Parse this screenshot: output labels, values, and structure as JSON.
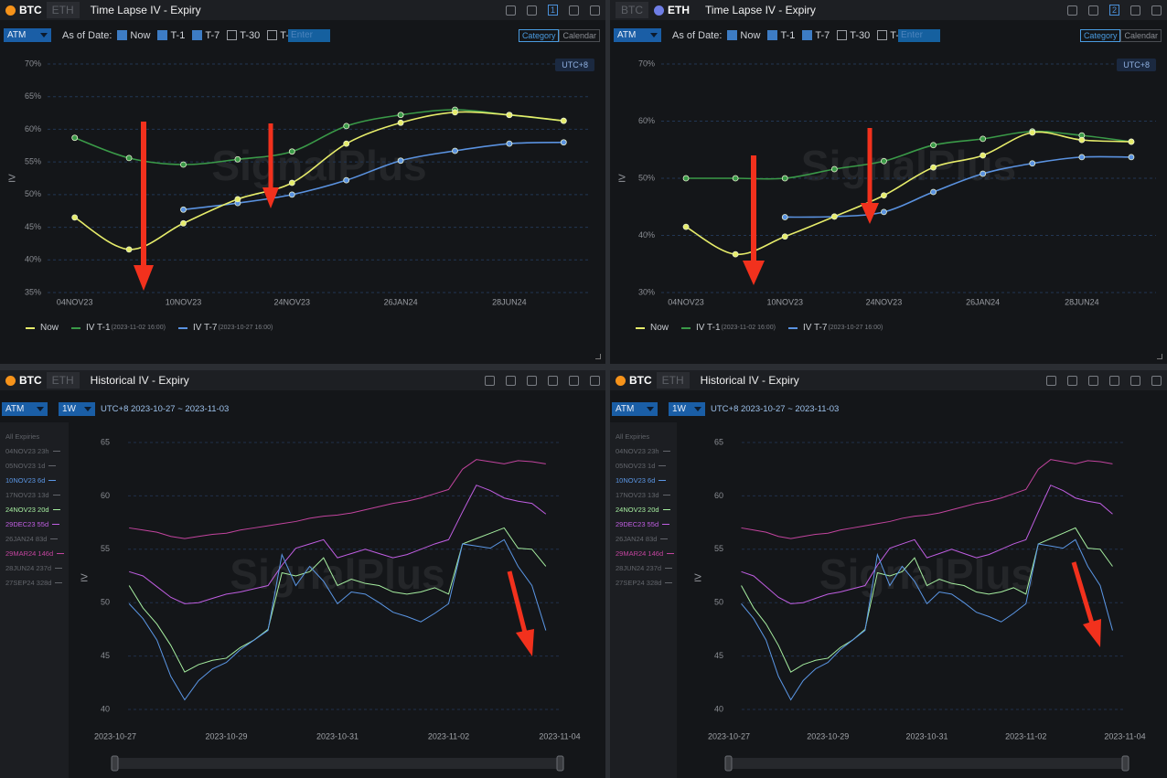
{
  "panels": [
    {
      "tabs": [
        "BTC",
        "ETH"
      ],
      "active_tab": 0,
      "title": "Time Lapse IV - Expiry",
      "page": "1",
      "toolbar": {
        "select": "ATM",
        "as_of_label": "As of Date:",
        "options": [
          {
            "label": "Now",
            "checked": true
          },
          {
            "label": "T-1",
            "checked": true
          },
          {
            "label": "T-7",
            "checked": true
          },
          {
            "label": "T-30",
            "checked": false
          },
          {
            "label": "T-",
            "checked": false
          }
        ],
        "input_placeholder": "Enter",
        "modes": [
          "Category",
          "Calendar"
        ],
        "active_mode": 0
      },
      "timezone": "UTC+8",
      "watermark": "SignalPlus"
    },
    {
      "tabs": [
        "BTC",
        "ETH"
      ],
      "active_tab": 1,
      "title": "Time Lapse IV - Expiry",
      "page": "2",
      "toolbar": {
        "select": "ATM",
        "as_of_label": "As of Date:",
        "options": [
          {
            "label": "Now",
            "checked": true
          },
          {
            "label": "T-1",
            "checked": true
          },
          {
            "label": "T-7",
            "checked": true
          },
          {
            "label": "T-30",
            "checked": false
          },
          {
            "label": "T-",
            "checked": false
          }
        ],
        "input_placeholder": "Enter",
        "modes": [
          "Category",
          "Calendar"
        ],
        "active_mode": 0
      },
      "timezone": "UTC+8",
      "watermark": "SignalPlus"
    },
    {
      "tabs": [
        "BTC",
        "ETH"
      ],
      "active_tab": 0,
      "title": "Historical IV - Expiry",
      "toolbar": {
        "select": "ATM",
        "period": "1W",
        "range": "UTC+8 2023-10-27 ~ 2023-11-03"
      },
      "sidebar_title": "All Expiries",
      "watermark": "SignalPlus"
    },
    {
      "tabs": [
        "BTC",
        "ETH"
      ],
      "active_tab": 0,
      "title": "Historical IV - Expiry",
      "toolbar": {
        "select": "ATM",
        "period": "1W",
        "range": "UTC+8 2023-10-27 ~ 2023-11-03"
      },
      "sidebar_title": "All Expiries",
      "watermark": "SignalPlus"
    }
  ],
  "chart_data": [
    {
      "type": "line",
      "y_label": "IV",
      "categories": [
        "04NOV23",
        null,
        "10NOV23",
        null,
        "24NOV23",
        null,
        "26JAN24",
        null,
        "28JUN24",
        null
      ],
      "series": [
        {
          "name": "Now",
          "color": "#e6ec6a",
          "values": [
            46.5,
            41.6,
            45.6,
            49.3,
            51.8,
            57.8,
            61.0,
            62.6,
            62.2,
            61.3
          ]
        },
        {
          "name": "IV T-1",
          "date_label": "(2023-11-02 16:00)",
          "color": "#3a9a48",
          "values": [
            58.7,
            55.6,
            54.6,
            55.4,
            56.6,
            60.5,
            62.2,
            63.0,
            62.2,
            61.3
          ]
        },
        {
          "name": "IV T-7",
          "date_label": "(2023-10-27 16:00)",
          "color": "#5a92e0",
          "values": [
            null,
            null,
            47.7,
            48.7,
            50.0,
            52.2,
            55.2,
            56.7,
            57.8,
            58.0
          ]
        }
      ],
      "ylim": [
        35,
        70
      ],
      "yticks": [
        {
          "value": 35,
          "label": "35%"
        },
        {
          "value": 40,
          "label": "40%"
        },
        {
          "value": 45,
          "label": "45%"
        },
        {
          "value": 50,
          "label": "50%"
        },
        {
          "value": 55,
          "label": "55%"
        },
        {
          "value": 60,
          "label": "60%"
        },
        {
          "value": 65,
          "label": "65%"
        },
        {
          "value": 70,
          "label": "70%"
        }
      ],
      "grid": true
    },
    {
      "type": "line",
      "y_label": "IV",
      "categories": [
        "04NOV23",
        null,
        "10NOV23",
        null,
        "24NOV23",
        null,
        "26JAN24",
        null,
        "28JUN24",
        null
      ],
      "series": [
        {
          "name": "Now",
          "color": "#e6ec6a",
          "values": [
            41.5,
            36.7,
            39.8,
            43.3,
            47.0,
            51.9,
            54.0,
            58.0,
            56.7,
            56.4
          ]
        },
        {
          "name": "IV T-1",
          "date_label": "(2023-11-02 16:00)",
          "color": "#3a9a48",
          "values": [
            50.0,
            50.0,
            50.0,
            51.6,
            53.0,
            55.8,
            56.9,
            58.2,
            57.5,
            56.4
          ]
        },
        {
          "name": "IV T-7",
          "date_label": "(2023-10-27 16:00)",
          "color": "#5a92e0",
          "values": [
            null,
            null,
            43.2,
            43.3,
            44.1,
            47.6,
            50.8,
            52.6,
            53.7,
            53.7
          ]
        }
      ],
      "ylim": [
        30,
        70
      ],
      "yticks": [
        {
          "value": 30,
          "label": "30%"
        },
        {
          "value": 40,
          "label": "40%"
        },
        {
          "value": 50,
          "label": "50%"
        },
        {
          "value": 60,
          "label": "60%"
        },
        {
          "value": 70,
          "label": "70%"
        }
      ],
      "grid": true
    },
    {
      "type": "line",
      "y_label": "IV",
      "x": [
        "2023-10-27 06:00",
        "2023-10-27 12:00",
        "2023-10-27 18:00",
        "2023-10-28 00:00",
        "2023-10-28 06:00",
        "2023-10-28 12:00",
        "2023-10-28 18:00",
        "2023-10-29 00:00",
        "2023-10-29 06:00",
        "2023-10-29 12:00",
        "2023-10-29 18:00",
        "2023-10-30 00:00",
        "2023-10-30 06:00",
        "2023-10-30 12:00",
        "2023-10-30 18:00",
        "2023-10-31 00:00",
        "2023-10-31 06:00",
        "2023-10-31 12:00",
        "2023-10-31 18:00",
        "2023-11-01 00:00",
        "2023-11-01 06:00",
        "2023-11-01 12:00",
        "2023-11-01 18:00",
        "2023-11-02 00:00",
        "2023-11-02 06:00",
        "2023-11-02 12:00",
        "2023-11-02 18:00",
        "2023-11-03 00:00",
        "2023-11-03 06:00",
        "2023-11-03 12:00",
        "2023-11-03 18:00"
      ],
      "xlim": [
        "2023-10-27",
        "2023-11-04"
      ],
      "xticks": [
        "2023-10-27",
        "2023-10-29",
        "2023-10-31",
        "2023-11-02",
        "2023-11-04"
      ],
      "ylim": [
        40,
        65
      ],
      "yticks": [
        40,
        45,
        50,
        55,
        60,
        65
      ],
      "grid": true,
      "series": [
        {
          "name": "04NOV23 23h",
          "visible": false
        },
        {
          "name": "05NOV23 1d",
          "visible": false
        },
        {
          "name": "10NOV23 6d",
          "visible": true,
          "color": "#5b97e6",
          "values": [
            49.9,
            48.5,
            46.5,
            43.1,
            40.9,
            42.7,
            43.8,
            44.4,
            45.6,
            46.5,
            47.4,
            54.5,
            51.6,
            53.4,
            52.0,
            49.9,
            51.0,
            50.8,
            50.0,
            49.1,
            48.7,
            48.2,
            49.0,
            49.9,
            55.5,
            55.3,
            55.1,
            55.9,
            53.4,
            51.6,
            47.4
          ]
        },
        {
          "name": "17NOV23 13d",
          "visible": false
        },
        {
          "name": "24NOV23 20d",
          "visible": true,
          "color": "#a6eea0",
          "values": [
            51.6,
            49.5,
            48.0,
            46.0,
            43.5,
            44.2,
            44.6,
            44.8,
            45.8,
            46.5,
            47.5,
            52.8,
            52.5,
            52.9,
            54.2,
            51.6,
            52.2,
            51.8,
            51.6,
            51.0,
            50.8,
            51.0,
            51.4,
            50.8,
            55.5,
            56.0,
            56.5,
            57.0,
            55.1,
            55.0,
            53.4
          ]
        },
        {
          "name": "29DEC23 55d",
          "visible": true,
          "color": "#c05ee2",
          "values": [
            52.9,
            52.5,
            51.5,
            50.5,
            49.9,
            50.0,
            50.4,
            50.8,
            51.0,
            51.3,
            51.6,
            53.5,
            55.1,
            55.5,
            55.9,
            54.2,
            54.6,
            55.0,
            54.6,
            54.2,
            54.5,
            55.0,
            55.5,
            55.9,
            58.5,
            61.0,
            60.5,
            59.8,
            59.5,
            59.3,
            58.3
          ]
        },
        {
          "name": "26JAN24 83d",
          "visible": false
        },
        {
          "name": "29MAR24 146d",
          "visible": true,
          "color": "#c2449e",
          "values": [
            57.0,
            56.8,
            56.6,
            56.2,
            56.0,
            56.2,
            56.4,
            56.5,
            56.8,
            57.0,
            57.2,
            57.4,
            57.6,
            57.9,
            58.1,
            58.2,
            58.4,
            58.7,
            59.0,
            59.3,
            59.5,
            59.8,
            60.2,
            60.6,
            62.5,
            63.4,
            63.2,
            63.0,
            63.3,
            63.2,
            63.0
          ]
        },
        {
          "name": "28JUN24 237d",
          "visible": false
        },
        {
          "name": "27SEP24 328d",
          "visible": false
        }
      ]
    },
    {
      "type": "line",
      "y_label": "IV",
      "x": [
        "2023-10-27 06:00",
        "2023-10-27 12:00",
        "2023-10-27 18:00",
        "2023-10-28 00:00",
        "2023-10-28 06:00",
        "2023-10-28 12:00",
        "2023-10-28 18:00",
        "2023-10-29 00:00",
        "2023-10-29 06:00",
        "2023-10-29 12:00",
        "2023-10-29 18:00",
        "2023-10-30 00:00",
        "2023-10-30 06:00",
        "2023-10-30 12:00",
        "2023-10-30 18:00",
        "2023-10-31 00:00",
        "2023-10-31 06:00",
        "2023-10-31 12:00",
        "2023-10-31 18:00",
        "2023-11-01 00:00",
        "2023-11-01 06:00",
        "2023-11-01 12:00",
        "2023-11-01 18:00",
        "2023-11-02 00:00",
        "2023-11-02 06:00",
        "2023-11-02 12:00",
        "2023-11-02 18:00",
        "2023-11-03 00:00",
        "2023-11-03 06:00",
        "2023-11-03 12:00",
        "2023-11-03 18:00"
      ],
      "xlim": [
        "2023-10-27",
        "2023-11-04"
      ],
      "xticks": [
        "2023-10-27",
        "2023-10-29",
        "2023-10-31",
        "2023-11-02",
        "2023-11-04"
      ],
      "ylim": [
        40,
        65
      ],
      "yticks": [
        40,
        45,
        50,
        55,
        60,
        65
      ],
      "grid": true,
      "series": [
        {
          "name": "04NOV23 23h",
          "visible": false
        },
        {
          "name": "05NOV23 1d",
          "visible": false
        },
        {
          "name": "10NOV23 6d",
          "visible": true,
          "color": "#5b97e6",
          "values": [
            49.9,
            48.5,
            46.5,
            43.1,
            40.9,
            42.7,
            43.8,
            44.4,
            45.6,
            46.5,
            47.4,
            54.5,
            51.6,
            53.4,
            52.0,
            49.9,
            51.0,
            50.8,
            50.0,
            49.1,
            48.7,
            48.2,
            49.0,
            49.9,
            55.5,
            55.3,
            55.1,
            55.9,
            53.4,
            51.6,
            47.4
          ]
        },
        {
          "name": "17NOV23 13d",
          "visible": false
        },
        {
          "name": "24NOV23 20d",
          "visible": true,
          "color": "#a6eea0",
          "values": [
            51.6,
            49.5,
            48.0,
            46.0,
            43.5,
            44.2,
            44.6,
            44.8,
            45.8,
            46.5,
            47.5,
            52.8,
            52.5,
            52.9,
            54.2,
            51.6,
            52.2,
            51.8,
            51.6,
            51.0,
            50.8,
            51.0,
            51.4,
            50.8,
            55.5,
            56.0,
            56.5,
            57.0,
            55.1,
            55.0,
            53.4
          ]
        },
        {
          "name": "29DEC23 55d",
          "visible": true,
          "color": "#c05ee2",
          "values": [
            52.9,
            52.5,
            51.5,
            50.5,
            49.9,
            50.0,
            50.4,
            50.8,
            51.0,
            51.3,
            51.6,
            53.5,
            55.1,
            55.5,
            55.9,
            54.2,
            54.6,
            55.0,
            54.6,
            54.2,
            54.5,
            55.0,
            55.5,
            55.9,
            58.5,
            61.0,
            60.5,
            59.8,
            59.5,
            59.3,
            58.3
          ]
        },
        {
          "name": "26JAN24 83d",
          "visible": false
        },
        {
          "name": "29MAR24 146d",
          "visible": true,
          "color": "#c2449e",
          "values": [
            57.0,
            56.8,
            56.6,
            56.2,
            56.0,
            56.2,
            56.4,
            56.5,
            56.8,
            57.0,
            57.2,
            57.4,
            57.6,
            57.9,
            58.1,
            58.2,
            58.4,
            58.7,
            59.0,
            59.3,
            59.5,
            59.8,
            60.2,
            60.6,
            62.5,
            63.4,
            63.2,
            63.0,
            63.3,
            63.2,
            63.0
          ]
        },
        {
          "name": "28JUN24 237d",
          "visible": false
        },
        {
          "name": "27SEP24 328d",
          "visible": false
        }
      ]
    }
  ]
}
